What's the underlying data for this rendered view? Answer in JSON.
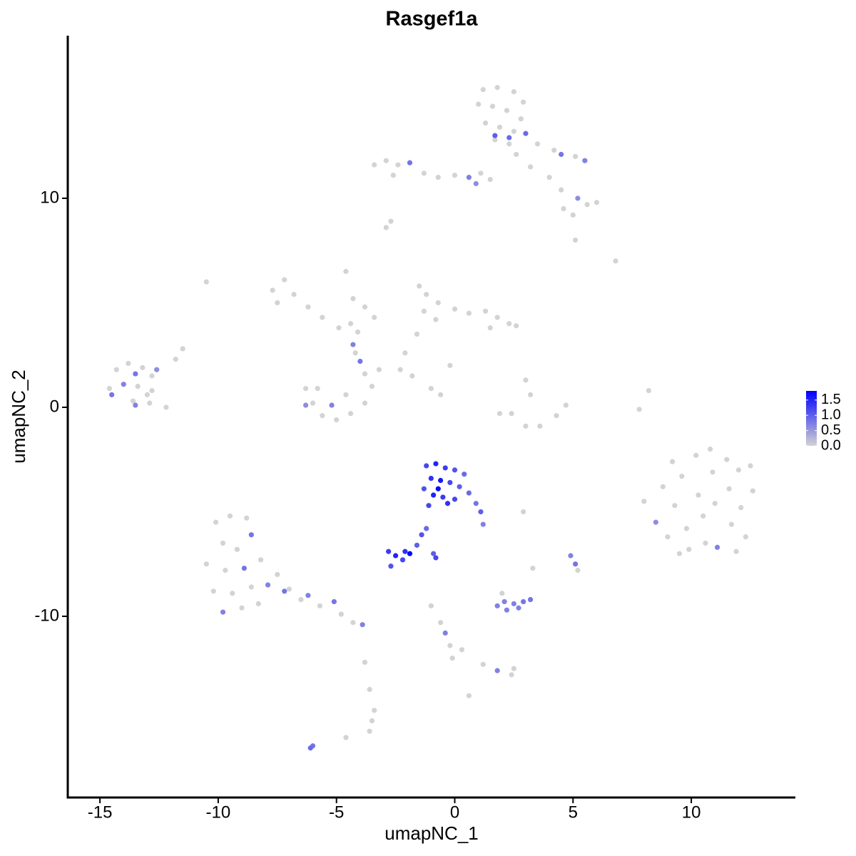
{
  "chart_data": {
    "type": "scatter",
    "title": "Rasgef1a",
    "x_label": "umapNC_1",
    "y_label": "umapNC_2",
    "xlim": [
      -16.36,
      14.4
    ],
    "ylim": [
      -18.67,
      17.78
    ],
    "xticks": [
      -15,
      -10,
      -5,
      0,
      5,
      10
    ],
    "yticks": [
      -10,
      0,
      10
    ],
    "color_low": "#d3d3d3",
    "color_high": "#0000ff",
    "colorlim": [
      0,
      1.8
    ],
    "colorticks": [
      {
        "value": 0,
        "label": "0.0"
      },
      {
        "value": 0.5,
        "label": "0.5"
      },
      {
        "value": 1,
        "label": "1.0"
      },
      {
        "value": 1.5,
        "label": "1.5"
      }
    ],
    "x": [
      1.2,
      1.8,
      2.5,
      2.9,
      1.0,
      1.6,
      2.2,
      2.8,
      1.3,
      1.9,
      2.5,
      3.0,
      1.7,
      2.3,
      1.7,
      2.3,
      3.5,
      4.2,
      4.5,
      5.1,
      5.5,
      4.0,
      4.5,
      5.2,
      5.6,
      6.0,
      5.0,
      4.6,
      5.1,
      6.8,
      3.2,
      2.6,
      -3.4,
      -2.9,
      -2.4,
      -1.9,
      -2.6,
      -1.3,
      -0.7,
      0,
      0.6,
      1.1,
      1.5,
      0.9,
      -2.7,
      -2.9,
      -7.7,
      -7.2,
      -6.8,
      -7.5,
      -6.2,
      -5.6,
      -4.9,
      -4.4,
      -4.1,
      -4.6,
      -4.3,
      -3.8,
      -3.4,
      -10.5,
      -4.2,
      -4.0,
      -4.3,
      -6.3,
      -6.0,
      -5.6,
      -5.0,
      -4.4,
      -3.8,
      -3.5,
      -3.8,
      -5.2,
      -6.3,
      -4.6,
      -5.8,
      -1.5,
      -1.2,
      -0.7,
      -1.3,
      -0.8,
      0.0,
      0.6,
      1.3,
      1.8,
      2.3,
      2.6,
      1.5,
      -1.6,
      -2.1,
      -2.3,
      -1.8,
      -1.0,
      -0.6,
      -0.2,
      -3.2,
      -14.3,
      -13.8,
      -13.2,
      -12.8,
      -14.6,
      -14.0,
      -13.4,
      -12.8,
      -14.5,
      -13.6,
      -12.9,
      -12.2,
      -13.5,
      -12.6,
      -13.0,
      -11.8,
      -11.5,
      -13.5,
      3.0,
      3.2,
      2.4,
      3.0,
      3.6,
      4.3,
      4.7,
      1.9,
      8.2,
      7.8,
      8.0,
      8.5,
      8.8,
      9.2,
      9.0,
      9.3,
      9.6,
      9.8,
      9.9,
      10.2,
      10.3,
      10.5,
      10.6,
      10.9,
      11.0,
      11.1,
      11.5,
      11.6,
      11.7,
      12.0,
      12.1,
      12.3,
      12.6,
      12.5,
      11.9,
      9.5,
      10.8,
      -1.2,
      -0.8,
      -0.4,
      0.0,
      0.4,
      -1.0,
      -0.6,
      -0.2,
      0.2,
      -1.3,
      -0.9,
      -0.5,
      0.0,
      -0.7,
      0.6,
      0.9,
      1.1,
      1.2,
      -1.1,
      -0.3,
      -2.8,
      -2.5,
      -2.1,
      -1.9,
      -2.2,
      -2.7,
      -1.6,
      -1.4,
      -1.2,
      -0.8,
      -0.9,
      1.8,
      2.1,
      2.5,
      2.9,
      2.2,
      2.7,
      3.2,
      2.0,
      4.9,
      5.1,
      5.2,
      3.3,
      2.9,
      -10.1,
      -9.5,
      -8.8,
      -9.8,
      -9.2,
      -8.6,
      -10.5,
      -9.7,
      -8.9,
      -8.2,
      -10.2,
      -9.4,
      -8.6,
      -7.9,
      -7.5,
      -9.8,
      -9.0,
      -8.3,
      -7.0,
      -6.5,
      -5.7,
      -4.8,
      -4.3,
      -3.9,
      -6.2,
      -5.1,
      -7.2,
      -1.0,
      -0.6,
      -0.4,
      -0.2,
      0.3,
      -0.1,
      1.2,
      1.8,
      2.4,
      2.5,
      -3.8,
      -3.6,
      -3.4,
      -3.5,
      -3.6,
      -4.6,
      0.6,
      -6.0,
      -6.1
    ],
    "values": [
      15.2,
      15.3,
      15.1,
      14.6,
      14.5,
      14.4,
      14.2,
      13.8,
      13.6,
      13.4,
      13.2,
      13.1,
      12.8,
      12.6,
      13.0,
      12.9,
      12.6,
      12.3,
      12.1,
      12.0,
      11.8,
      11.0,
      10.4,
      10.0,
      9.7,
      9.8,
      9.2,
      9.5,
      8.0,
      7.0,
      11.5,
      12.1,
      11.6,
      11.8,
      11.6,
      11.7,
      11.1,
      11.2,
      11.0,
      11.1,
      11.0,
      11.2,
      10.9,
      10.7,
      8.9,
      8.6,
      5.6,
      6.1,
      5.4,
      5.0,
      4.8,
      4.3,
      3.8,
      4.0,
      3.6,
      6.5,
      5.2,
      4.8,
      4.3,
      6.0,
      2.6,
      2.2,
      3.0,
      0.9,
      0.2,
      -0.4,
      -0.6,
      -0.3,
      0.2,
      1.0,
      1.6,
      0.1,
      0.1,
      0.6,
      0.9,
      5.8,
      5.4,
      5.0,
      4.6,
      4.2,
      4.7,
      4.5,
      4.6,
      4.3,
      4.0,
      3.9,
      3.8,
      3.5,
      2.6,
      1.8,
      1.5,
      0.9,
      0.6,
      2.0,
      1.8,
      1.8,
      2.1,
      1.9,
      1.5,
      0.9,
      1.1,
      1.0,
      0.8,
      0.6,
      0.3,
      0.2,
      0.0,
      1.6,
      1.8,
      0.6,
      2.3,
      2.8,
      0.1,
      1.3,
      0.6,
      -0.3,
      -0.9,
      -0.9,
      -0.4,
      0.1,
      -0.3,
      0.8,
      -0.1,
      -4.5,
      -5.5,
      -3.8,
      -2.6,
      -6.2,
      -4.7,
      -3.3,
      -5.8,
      -6.8,
      -2.3,
      -4.2,
      -5.2,
      -6.5,
      -3.1,
      -4.6,
      -6.7,
      -2.5,
      -3.9,
      -5.6,
      -3.0,
      -4.8,
      -6.2,
      -4.0,
      -2.8,
      -6.9,
      -7.0,
      -2.0,
      -2.8,
      -2.7,
      -2.9,
      -3.0,
      -3.2,
      -3.4,
      -3.5,
      -3.6,
      -3.8,
      -3.9,
      -4.2,
      -4.3,
      -4.4,
      -3.9,
      -4.1,
      -4.6,
      -5.0,
      -5.6,
      -4.7,
      -4.6,
      -6.9,
      -7.1,
      -6.9,
      -7.0,
      -7.3,
      -7.6,
      -6.6,
      -6.1,
      -5.8,
      -7.2,
      -7.0,
      -9.5,
      -9.3,
      -9.4,
      -9.3,
      -9.7,
      -9.6,
      -9.2,
      -8.9,
      -7.1,
      -7.5,
      -7.8,
      -7.7,
      -5.0,
      -5.5,
      -5.2,
      -5.3,
      -6.5,
      -6.8,
      -6.1,
      -7.5,
      -7.8,
      -7.7,
      -7.3,
      -8.8,
      -8.9,
      -8.6,
      -8.5,
      -8.0,
      -9.8,
      -9.6,
      -9.4,
      -8.7,
      -9.2,
      -9.5,
      -9.9,
      -10.3,
      -10.4,
      -9.0,
      -9.3,
      -8.8,
      -9.5,
      -10.3,
      -10.8,
      -11.4,
      -11.6,
      -12.0,
      -12.3,
      -12.6,
      -12.8,
      -12.5,
      -12.2,
      -13.5,
      -14.5,
      -15.0,
      -15.5,
      -15.8,
      -13.8,
      -16.2,
      -16.3
    ],
    "expression": [
      0,
      0,
      0,
      0,
      0,
      0,
      0,
      0,
      0,
      0,
      0,
      0.9,
      0,
      0,
      1.0,
      0.9,
      0,
      0,
      0.8,
      0,
      0.7,
      0,
      0,
      0.6,
      0,
      0,
      0,
      0,
      0,
      0,
      0,
      0,
      0,
      0,
      0,
      0.8,
      0,
      0,
      0,
      0,
      0.7,
      0,
      0,
      0.6,
      0,
      0,
      0,
      0,
      0,
      0,
      0,
      0,
      0,
      0,
      0,
      0,
      0,
      0,
      0,
      0,
      0,
      0.8,
      0.7,
      0,
      0,
      0,
      0,
      0,
      0,
      0,
      0,
      0.7,
      0.6,
      0,
      0,
      0,
      0,
      0,
      0,
      0,
      0,
      0,
      0,
      0,
      0,
      0,
      0,
      0,
      0,
      0,
      0,
      0,
      0,
      0,
      0,
      0,
      0,
      0,
      0,
      0,
      0.7,
      0,
      0,
      0.8,
      0,
      0,
      0,
      0.8,
      0.6,
      0,
      0,
      0,
      0.7,
      0,
      0,
      0,
      0,
      0,
      0,
      0,
      0,
      0,
      0,
      0,
      0.6,
      0,
      0,
      0,
      0,
      0,
      0,
      0,
      0,
      0,
      0,
      0,
      0,
      0,
      0.7,
      0,
      0,
      0,
      0,
      0,
      0,
      0,
      0,
      0,
      0,
      0,
      1.2,
      1.5,
      1.3,
      1.1,
      0.9,
      1.4,
      1.6,
      1.2,
      1.0,
      1.1,
      1.5,
      1.3,
      1.2,
      1.7,
      0.9,
      0.8,
      1.0,
      0.7,
      1.2,
      1.4,
      1.3,
      1.5,
      1.4,
      1.8,
      1.2,
      1.1,
      1.0,
      1.1,
      0.9,
      1.2,
      1.0,
      0.7,
      0.7,
      0.7,
      0.8,
      0.7,
      0.7,
      0.8,
      0,
      0.7,
      0.8,
      0,
      0,
      0,
      0,
      0,
      0,
      0,
      0,
      0.8,
      0,
      0,
      0.8,
      0,
      0,
      0,
      0,
      0.7,
      0,
      0.7,
      0,
      0,
      0,
      0,
      0,
      0,
      0,
      0.7,
      0.7,
      0.8,
      0.8,
      0,
      0,
      0.7,
      0,
      0,
      0,
      0,
      0.7,
      0,
      0,
      0,
      0,
      0,
      0,
      0,
      0,
      0,
      0.8,
      0.9
    ]
  }
}
